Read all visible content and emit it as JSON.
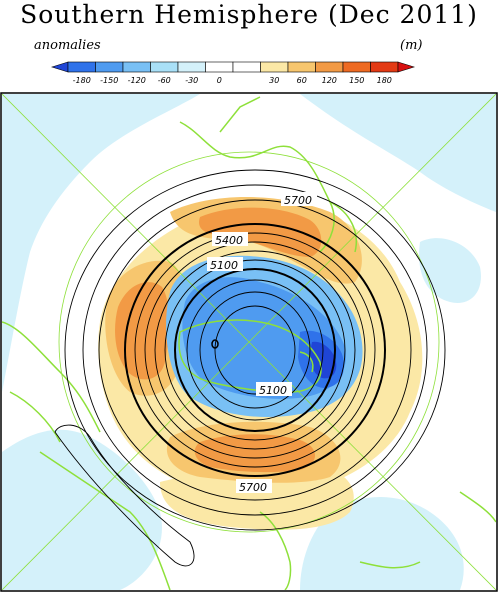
{
  "title": "Southern Hemisphere (Dec 2011)",
  "label_left": "anomalies",
  "label_right": "(m)",
  "colorbar": {
    "ticks": [
      "-180",
      "-150",
      "-120",
      "-60",
      "-30",
      "0",
      "30",
      "60",
      "120",
      "150",
      "180"
    ],
    "colors": [
      "#1f45d6",
      "#2f72ea",
      "#4f9bf0",
      "#79c0f5",
      "#a9e0f7",
      "#d4f1fa",
      "#ffffff",
      "#ffffff",
      "#fbe8a6",
      "#f7c66e",
      "#f29a45",
      "#ee6a22",
      "#e33a14",
      "#d61010"
    ]
  },
  "contours": {
    "labels": [
      "5700",
      "5400",
      "5100",
      "5100",
      "5700"
    ]
  },
  "colors": {
    "coastline": "#8ee03a",
    "gridline": "#8ee03a",
    "contour": "#000000"
  }
}
